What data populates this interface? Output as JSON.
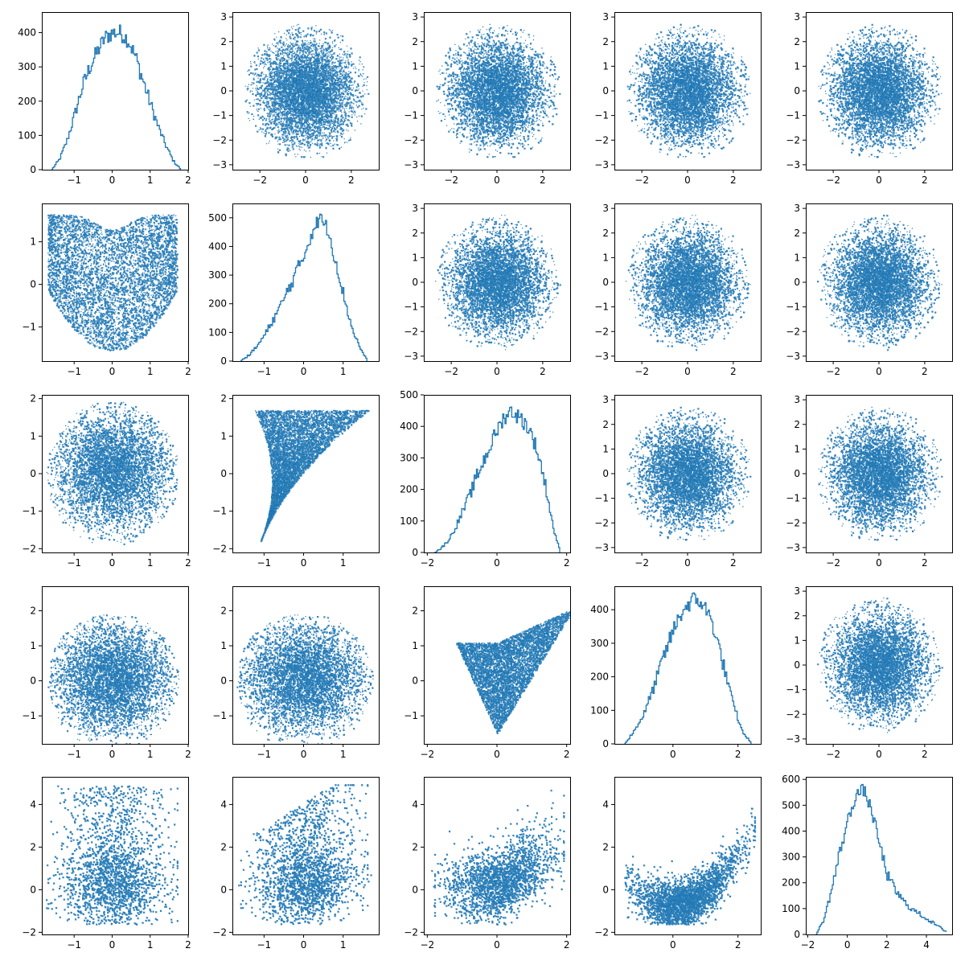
{
  "figure": {
    "grid_rows": 5,
    "grid_cols": 5,
    "series_color": "#1f77b4",
    "background": "#ffffff",
    "grid": false
  },
  "chart_data": [
    {
      "row": 0,
      "col": 0,
      "type": "line",
      "kind": "histogram-step",
      "x_range": [
        -1.85,
        2.0
      ],
      "y_range": [
        0,
        460
      ],
      "x_ticks": [
        -1,
        0,
        1,
        2
      ],
      "x_tick_labels": [
        "−1",
        "0",
        "1",
        "2"
      ],
      "y_ticks": [
        0,
        100,
        200,
        300,
        400
      ],
      "y_tick_labels": [
        "0",
        "100",
        "200",
        "300",
        "400"
      ],
      "x": [
        -1.6,
        -1.4,
        -1.2,
        -1.0,
        -0.8,
        -0.6,
        -0.4,
        -0.2,
        0.0,
        0.2,
        0.4,
        0.6,
        0.8,
        1.0,
        1.2,
        1.4,
        1.6,
        1.8
      ],
      "y": [
        0,
        30,
        85,
        160,
        240,
        300,
        345,
        385,
        400,
        400,
        380,
        330,
        260,
        190,
        125,
        70,
        25,
        0
      ]
    },
    {
      "row": 0,
      "col": 1,
      "type": "scatter",
      "shape": "disk",
      "x_range": [
        -3.2,
        3.2
      ],
      "y_range": [
        -3.2,
        3.2
      ],
      "x_ticks": [
        -2,
        0,
        2
      ],
      "x_tick_labels": [
        "−2",
        "0",
        "2"
      ],
      "y_ticks": [
        -3,
        -2,
        -1,
        0,
        1,
        2,
        3
      ],
      "y_tick_labels": [
        "−3",
        "−2",
        "−1",
        "0",
        "1",
        "2",
        "3"
      ]
    },
    {
      "row": 0,
      "col": 2,
      "type": "scatter",
      "shape": "disk",
      "x_range": [
        -3.2,
        3.2
      ],
      "y_range": [
        -3.2,
        3.2
      ],
      "x_ticks": [
        -2,
        0,
        2
      ],
      "x_tick_labels": [
        "−2",
        "0",
        "2"
      ],
      "y_ticks": [
        -3,
        -2,
        -1,
        0,
        1,
        2,
        3
      ],
      "y_tick_labels": [
        "−3",
        "−2",
        "−1",
        "0",
        "1",
        "2",
        "3"
      ]
    },
    {
      "row": 0,
      "col": 3,
      "type": "scatter",
      "shape": "disk",
      "x_range": [
        -3.2,
        3.2
      ],
      "y_range": [
        -3.2,
        3.2
      ],
      "x_ticks": [
        -2,
        0,
        2
      ],
      "x_tick_labels": [
        "−2",
        "0",
        "2"
      ],
      "y_ticks": [
        -3,
        -2,
        -1,
        0,
        1,
        2,
        3
      ],
      "y_tick_labels": [
        "−3",
        "−2",
        "−1",
        "0",
        "1",
        "2",
        "3"
      ]
    },
    {
      "row": 0,
      "col": 4,
      "type": "scatter",
      "shape": "disk",
      "x_range": [
        -3.2,
        3.2
      ],
      "y_range": [
        -3.2,
        3.2
      ],
      "x_ticks": [
        -2,
        0,
        2
      ],
      "x_tick_labels": [
        "−2",
        "0",
        "2"
      ],
      "y_ticks": [
        -3,
        -2,
        -1,
        0,
        1,
        2,
        3
      ],
      "y_tick_labels": [
        "−3",
        "−2",
        "−1",
        "0",
        "1",
        "2",
        "3"
      ]
    },
    {
      "row": 1,
      "col": 0,
      "type": "scatter",
      "shape": "heart",
      "x_range": [
        -1.85,
        2.0
      ],
      "y_range": [
        -1.8,
        1.9
      ],
      "x_ticks": [
        -1,
        0,
        1,
        2
      ],
      "x_tick_labels": [
        "−1",
        "0",
        "1",
        "2"
      ],
      "y_ticks": [
        -1,
        0,
        1
      ],
      "y_tick_labels": [
        "−1",
        "0",
        "1"
      ]
    },
    {
      "row": 1,
      "col": 1,
      "type": "line",
      "kind": "histogram-step",
      "x_range": [
        -1.8,
        1.9
      ],
      "y_range": [
        0,
        550
      ],
      "x_ticks": [
        -1,
        0,
        1
      ],
      "x_tick_labels": [
        "−1",
        "0",
        "1"
      ],
      "y_ticks": [
        0,
        100,
        200,
        300,
        400,
        500
      ],
      "y_tick_labels": [
        "0",
        "100",
        "200",
        "300",
        "400",
        "500"
      ],
      "x": [
        -1.6,
        -1.4,
        -1.2,
        -1.0,
        -0.8,
        -0.6,
        -0.4,
        -0.2,
        0.0,
        0.2,
        0.4,
        0.6,
        0.8,
        1.0,
        1.2,
        1.4,
        1.6
      ],
      "y": [
        0,
        20,
        50,
        90,
        140,
        190,
        250,
        310,
        370,
        450,
        500,
        460,
        350,
        230,
        120,
        50,
        0
      ]
    },
    {
      "row": 1,
      "col": 2,
      "type": "scatter",
      "shape": "disk",
      "x_range": [
        -3.2,
        3.2
      ],
      "y_range": [
        -3.2,
        3.2
      ],
      "x_ticks": [
        -2,
        0,
        2
      ],
      "x_tick_labels": [
        "−2",
        "0",
        "2"
      ],
      "y_ticks": [
        -3,
        -2,
        -1,
        0,
        1,
        2,
        3
      ],
      "y_tick_labels": [
        "−3",
        "−2",
        "−1",
        "0",
        "1",
        "2",
        "3"
      ]
    },
    {
      "row": 1,
      "col": 3,
      "type": "scatter",
      "shape": "disk",
      "x_range": [
        -3.2,
        3.2
      ],
      "y_range": [
        -3.2,
        3.2
      ],
      "x_ticks": [
        -2,
        0,
        2
      ],
      "x_tick_labels": [
        "−2",
        "0",
        "2"
      ],
      "y_ticks": [
        -3,
        -2,
        -1,
        0,
        1,
        2,
        3
      ],
      "y_tick_labels": [
        "−3",
        "−2",
        "−1",
        "0",
        "1",
        "2",
        "3"
      ]
    },
    {
      "row": 1,
      "col": 4,
      "type": "scatter",
      "shape": "disk",
      "x_range": [
        -3.2,
        3.2
      ],
      "y_range": [
        -3.2,
        3.2
      ],
      "x_ticks": [
        -2,
        0,
        2
      ],
      "x_tick_labels": [
        "−2",
        "0",
        "2"
      ],
      "y_ticks": [
        -3,
        -2,
        -1,
        0,
        1,
        2,
        3
      ],
      "y_tick_labels": [
        "−3",
        "−2",
        "−1",
        "0",
        "1",
        "2",
        "3"
      ]
    },
    {
      "row": 2,
      "col": 0,
      "type": "scatter",
      "shape": "blob",
      "x_range": [
        -1.85,
        2.0
      ],
      "y_range": [
        -2.1,
        2.1
      ],
      "x_ticks": [
        -1,
        0,
        1,
        2
      ],
      "x_tick_labels": [
        "−1",
        "0",
        "1",
        "2"
      ],
      "y_ticks": [
        -2,
        -1,
        0,
        1,
        2
      ],
      "y_tick_labels": [
        "−2",
        "−1",
        "0",
        "1",
        "2"
      ]
    },
    {
      "row": 2,
      "col": 1,
      "type": "scatter",
      "shape": "triangle",
      "x_range": [
        -1.8,
        1.9
      ],
      "y_range": [
        -2.1,
        2.1
      ],
      "x_ticks": [
        -1,
        0,
        1
      ],
      "x_tick_labels": [
        "−1",
        "0",
        "1"
      ],
      "y_ticks": [
        -2,
        -1,
        0,
        1,
        2
      ],
      "y_tick_labels": [
        "−2",
        "−1",
        "0",
        "1",
        "2"
      ]
    },
    {
      "row": 2,
      "col": 2,
      "type": "line",
      "kind": "histogram-step",
      "x_range": [
        -2.1,
        2.1
      ],
      "y_range": [
        0,
        500
      ],
      "x_ticks": [
        -2,
        0,
        2
      ],
      "x_tick_labels": [
        "−2",
        "0",
        "2"
      ],
      "y_ticks": [
        0,
        100,
        200,
        300,
        400,
        500
      ],
      "y_tick_labels": [
        "0",
        "100",
        "200",
        "300",
        "400",
        "500"
      ],
      "x": [
        -1.8,
        -1.6,
        -1.4,
        -1.2,
        -1.0,
        -0.8,
        -0.6,
        -0.4,
        -0.2,
        0.0,
        0.2,
        0.4,
        0.6,
        0.8,
        1.0,
        1.2,
        1.4,
        1.6,
        1.8
      ],
      "y": [
        0,
        15,
        40,
        80,
        130,
        180,
        240,
        290,
        340,
        390,
        430,
        450,
        430,
        410,
        370,
        300,
        200,
        80,
        0
      ]
    },
    {
      "row": 2,
      "col": 3,
      "type": "scatter",
      "shape": "disk",
      "x_range": [
        -3.2,
        3.2
      ],
      "y_range": [
        -3.2,
        3.2
      ],
      "x_ticks": [
        -2,
        0,
        2
      ],
      "x_tick_labels": [
        "−2",
        "0",
        "2"
      ],
      "y_ticks": [
        -3,
        -2,
        -1,
        0,
        1,
        2,
        3
      ],
      "y_tick_labels": [
        "−3",
        "−2",
        "−1",
        "0",
        "1",
        "2",
        "3"
      ]
    },
    {
      "row": 2,
      "col": 4,
      "type": "scatter",
      "shape": "disk",
      "x_range": [
        -3.2,
        3.2
      ],
      "y_range": [
        -3.2,
        3.2
      ],
      "x_ticks": [
        -2,
        0,
        2
      ],
      "x_tick_labels": [
        "−2",
        "0",
        "2"
      ],
      "y_ticks": [
        -3,
        -2,
        -1,
        0,
        1,
        2,
        3
      ],
      "y_tick_labels": [
        "−3",
        "−2",
        "−1",
        "0",
        "1",
        "2",
        "3"
      ]
    },
    {
      "row": 3,
      "col": 0,
      "type": "scatter",
      "shape": "blob",
      "x_range": [
        -1.85,
        2.0
      ],
      "y_range": [
        -1.8,
        2.7
      ],
      "x_ticks": [
        -1,
        0,
        1,
        2
      ],
      "x_tick_labels": [
        "−1",
        "0",
        "1",
        "2"
      ],
      "y_ticks": [
        -1,
        0,
        1,
        2
      ],
      "y_tick_labels": [
        "−1",
        "0",
        "1",
        "2"
      ]
    },
    {
      "row": 3,
      "col": 1,
      "type": "scatter",
      "shape": "blob",
      "x_range": [
        -1.8,
        1.9
      ],
      "y_range": [
        -1.8,
        2.7
      ],
      "x_ticks": [
        -1,
        0,
        1
      ],
      "x_tick_labels": [
        "−1",
        "0",
        "1"
      ],
      "y_ticks": [
        -1,
        0,
        1,
        2
      ],
      "y_tick_labels": [
        "−1",
        "0",
        "1",
        "2"
      ]
    },
    {
      "row": 3,
      "col": 2,
      "type": "scatter",
      "shape": "wedge",
      "x_range": [
        -2.1,
        2.1
      ],
      "y_range": [
        -1.8,
        2.7
      ],
      "x_ticks": [
        -2,
        0,
        2
      ],
      "x_tick_labels": [
        "−2",
        "0",
        "2"
      ],
      "y_ticks": [
        -1,
        0,
        1,
        2
      ],
      "y_tick_labels": [
        "−1",
        "0",
        "1",
        "2"
      ]
    },
    {
      "row": 3,
      "col": 3,
      "type": "line",
      "kind": "histogram-step",
      "x_range": [
        -1.8,
        2.7
      ],
      "y_range": [
        0,
        470
      ],
      "x_ticks": [
        0,
        2
      ],
      "x_tick_labels": [
        "0",
        "2"
      ],
      "y_ticks": [
        0,
        100,
        200,
        300,
        400
      ],
      "y_tick_labels": [
        "0",
        "100",
        "200",
        "300",
        "400"
      ],
      "x": [
        -1.5,
        -1.2,
        -0.9,
        -0.6,
        -0.3,
        0.0,
        0.3,
        0.6,
        0.9,
        1.2,
        1.5,
        1.8,
        2.1,
        2.4
      ],
      "y": [
        0,
        40,
        90,
        170,
        260,
        340,
        400,
        430,
        420,
        360,
        250,
        130,
        40,
        0
      ]
    },
    {
      "row": 3,
      "col": 4,
      "type": "scatter",
      "shape": "disk",
      "x_range": [
        -3.2,
        3.2
      ],
      "y_range": [
        -3.2,
        3.2
      ],
      "x_ticks": [
        -2,
        0,
        2
      ],
      "x_tick_labels": [
        "−2",
        "0",
        "2"
      ],
      "y_ticks": [
        -3,
        -2,
        -1,
        0,
        1,
        2,
        3
      ],
      "y_tick_labels": [
        "−3",
        "−2",
        "−1",
        "0",
        "1",
        "2",
        "3"
      ]
    },
    {
      "row": 4,
      "col": 0,
      "type": "scatter",
      "shape": "tall",
      "x_range": [
        -1.85,
        2.0
      ],
      "y_range": [
        -2.1,
        5.3
      ],
      "x_ticks": [
        -1,
        0,
        1,
        2
      ],
      "x_tick_labels": [
        "−1",
        "0",
        "1",
        "2"
      ],
      "y_ticks": [
        -2,
        0,
        2,
        4
      ],
      "y_tick_labels": [
        "−2",
        "0",
        "2",
        "4"
      ]
    },
    {
      "row": 4,
      "col": 1,
      "type": "scatter",
      "shape": "tall-tilt",
      "x_range": [
        -1.8,
        1.9
      ],
      "y_range": [
        -2.1,
        5.3
      ],
      "x_ticks": [
        -1,
        0,
        1
      ],
      "x_tick_labels": [
        "−1",
        "0",
        "1"
      ],
      "y_ticks": [
        -2,
        0,
        2,
        4
      ],
      "y_tick_labels": [
        "−2",
        "0",
        "2",
        "4"
      ]
    },
    {
      "row": 4,
      "col": 2,
      "type": "scatter",
      "shape": "rising",
      "x_range": [
        -2.1,
        2.1
      ],
      "y_range": [
        -2.1,
        5.3
      ],
      "x_ticks": [
        -2,
        0,
        2
      ],
      "x_tick_labels": [
        "−2",
        "0",
        "2"
      ],
      "y_ticks": [
        -2,
        0,
        2,
        4
      ],
      "y_tick_labels": [
        "−2",
        "0",
        "2",
        "4"
      ]
    },
    {
      "row": 4,
      "col": 3,
      "type": "scatter",
      "shape": "curve",
      "x_range": [
        -1.8,
        2.7
      ],
      "y_range": [
        -2.1,
        5.3
      ],
      "x_ticks": [
        0,
        2
      ],
      "x_tick_labels": [
        "0",
        "2"
      ],
      "y_ticks": [
        -2,
        0,
        2,
        4
      ],
      "y_tick_labels": [
        "−2",
        "0",
        "2",
        "4"
      ]
    },
    {
      "row": 4,
      "col": 4,
      "type": "line",
      "kind": "histogram-step",
      "x_range": [
        -2.1,
        5.3
      ],
      "y_range": [
        0,
        610
      ],
      "x_ticks": [
        -2,
        0,
        2,
        4
      ],
      "x_tick_labels": [
        "−2",
        "0",
        "2",
        "4"
      ],
      "y_ticks": [
        0,
        100,
        200,
        300,
        400,
        500,
        600
      ],
      "y_tick_labels": [
        "0",
        "100",
        "200",
        "300",
        "400",
        "500",
        "600"
      ],
      "x": [
        -1.6,
        -1.2,
        -0.8,
        -0.4,
        0.0,
        0.4,
        0.8,
        1.2,
        1.6,
        2.0,
        2.4,
        2.8,
        3.2,
        3.6,
        4.0,
        4.4,
        4.8,
        5.0
      ],
      "y": [
        0,
        60,
        180,
        320,
        440,
        540,
        560,
        480,
        350,
        230,
        170,
        130,
        100,
        80,
        60,
        40,
        20,
        10
      ]
    }
  ]
}
